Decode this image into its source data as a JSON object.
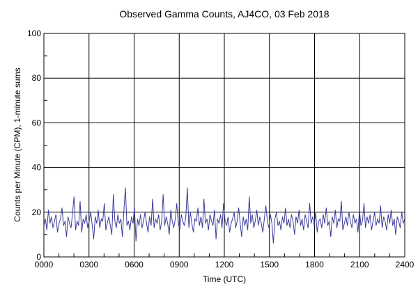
{
  "chart_data": {
    "type": "line",
    "title": "Observed Gamma Counts, AJ4CO, 03 Feb 2018",
    "xlabel": "Time (UTC)",
    "ylabel": "Counts per Minute (CPM), 1-minute sums",
    "xlim": [
      0,
      2400
    ],
    "ylim": [
      0,
      100
    ],
    "x_ticks": [
      "0000",
      "0300",
      "0600",
      "0900",
      "1200",
      "1500",
      "1800",
      "2100",
      "2400"
    ],
    "y_ticks": [
      "0",
      "20",
      "40",
      "60",
      "80",
      "100"
    ],
    "grid": true,
    "line_color": "#3a3a9a",
    "sample_interval_minutes": 6,
    "values": [
      14,
      17,
      12,
      21,
      15,
      18,
      13,
      16,
      19,
      11,
      15,
      17,
      22,
      14,
      16,
      9,
      18,
      15,
      13,
      20,
      27,
      12,
      16,
      14,
      25,
      11,
      17,
      15,
      19,
      13,
      16,
      20,
      14,
      8,
      18,
      15,
      21,
      13,
      17,
      16,
      24,
      12,
      15,
      18,
      14,
      10,
      28,
      16,
      13,
      19,
      15,
      17,
      9,
      21,
      31,
      14,
      16,
      12,
      18,
      15,
      22,
      7,
      17,
      14,
      19,
      13,
      16,
      20,
      15,
      11,
      18,
      14,
      26,
      13,
      17,
      15,
      19,
      12,
      16,
      28,
      14,
      18,
      15,
      10,
      21,
      16,
      13,
      17,
      24,
      15,
      12,
      19,
      16,
      14,
      18,
      31,
      13,
      20,
      15,
      11,
      17,
      16,
      22,
      14,
      18,
      13,
      26,
      15,
      17,
      12,
      19,
      16,
      14,
      21,
      8,
      17,
      15,
      19,
      13,
      24,
      16,
      14,
      18,
      11,
      15,
      17,
      20,
      13,
      16,
      22,
      15,
      9,
      18,
      14,
      17,
      12,
      27,
      15,
      19,
      13,
      16,
      21,
      14,
      18,
      15,
      11,
      17,
      23,
      16,
      13,
      19,
      15,
      6,
      17,
      20,
      14,
      16,
      12,
      18,
      15,
      22,
      14,
      17,
      13,
      19,
      16,
      10,
      18,
      15,
      21,
      14,
      17,
      12,
      19,
      16,
      13,
      24,
      15,
      18,
      14,
      20,
      11,
      16,
      17,
      13,
      19,
      15,
      22,
      14,
      16,
      9,
      18,
      15,
      21,
      13,
      17,
      16,
      25,
      12,
      15,
      18,
      14,
      20,
      16,
      13,
      19,
      15,
      17,
      11,
      21,
      14,
      16,
      24,
      13,
      18,
      15,
      19,
      12,
      16,
      20,
      14,
      17,
      15,
      23,
      13,
      18,
      16,
      12,
      19,
      15,
      21,
      14,
      17,
      10,
      18,
      16,
      13,
      20,
      15,
      17
    ],
    "y_range_observed": [
      5,
      31
    ]
  }
}
